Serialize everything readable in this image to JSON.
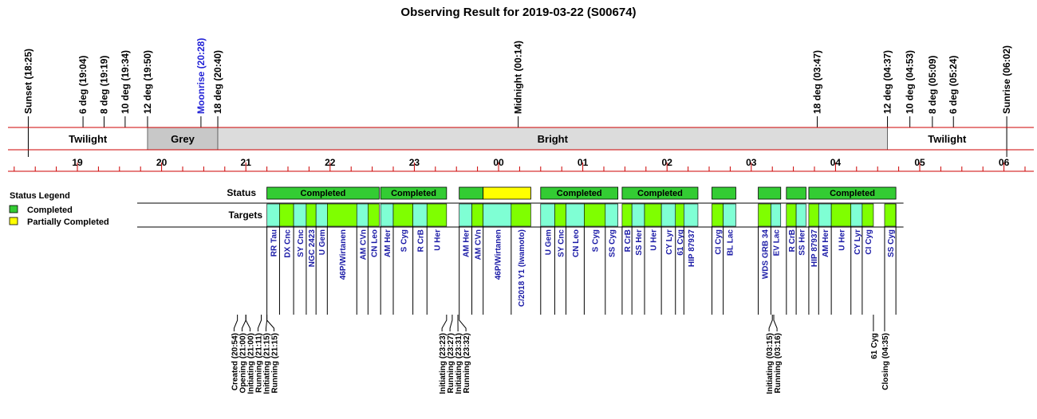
{
  "chart_data": {
    "type": "timeline",
    "title": "Observing Result for 2019-03-22 (S00674)",
    "hours": [
      "19",
      "20",
      "21",
      "22",
      "23",
      "00",
      "01",
      "02",
      "03",
      "04",
      "05",
      "06"
    ],
    "events": [
      {
        "label": "Sunset (18:25)",
        "t": 18.417,
        "color": "#000000"
      },
      {
        "label": "6 deg (19:04)",
        "t": 19.067,
        "color": "#000000"
      },
      {
        "label": "8 deg (19:19)",
        "t": 19.317,
        "color": "#000000"
      },
      {
        "label": "10 deg (19:34)",
        "t": 19.567,
        "color": "#000000"
      },
      {
        "label": "12 deg (19:50)",
        "t": 19.833,
        "color": "#000000"
      },
      {
        "label": "Moonrise (20:28)",
        "t": 20.467,
        "color": "#2323d6"
      },
      {
        "label": "18 deg (20:40)",
        "t": 20.667,
        "color": "#000000"
      },
      {
        "label": "Midnight (00:14)",
        "t": 24.233,
        "color": "#000000"
      },
      {
        "label": "18 deg (03:47)",
        "t": 27.783,
        "color": "#000000"
      },
      {
        "label": "12 deg (04:37)",
        "t": 28.617,
        "color": "#000000"
      },
      {
        "label": "10 deg (04:53)",
        "t": 28.883,
        "color": "#000000"
      },
      {
        "label": "8 deg (05:09)",
        "t": 29.15,
        "color": "#000000"
      },
      {
        "label": "6 deg (05:24)",
        "t": 29.4,
        "color": "#000000"
      },
      {
        "label": "Sunrise (06:02)",
        "t": 30.033,
        "color": "#000000"
      }
    ],
    "bands": [
      {
        "label": "Twilight",
        "start": 18.417,
        "end": 19.833,
        "color": "#ffffff"
      },
      {
        "label": "Grey",
        "start": 19.833,
        "end": 20.667,
        "color": "#c8c8c8"
      },
      {
        "label": "Bright",
        "start": 20.667,
        "end": 28.617,
        "color": "#dcdcdc"
      },
      {
        "label": "Twilight",
        "start": 28.617,
        "end": 30.033,
        "color": "#ffffff"
      }
    ],
    "row_labels": {
      "status": "Status",
      "targets": "Targets"
    },
    "status_segments": [
      {
        "label": "Completed",
        "start": 21.25,
        "end": 22.583,
        "status": "completed"
      },
      {
        "label": "Completed",
        "start": 22.6,
        "end": 23.383,
        "status": "completed"
      },
      {
        "label": "",
        "start": 23.533,
        "end": 23.817,
        "status": "completed"
      },
      {
        "label": "",
        "start": 23.817,
        "end": 24.383,
        "status": "partial"
      },
      {
        "label": "Completed",
        "start": 24.5,
        "end": 25.417,
        "status": "completed"
      },
      {
        "label": "Completed",
        "start": 25.467,
        "end": 26.367,
        "status": "completed"
      },
      {
        "label": "",
        "start": 26.533,
        "end": 26.817,
        "status": "completed"
      },
      {
        "label": "",
        "start": 27.083,
        "end": 27.35,
        "status": "completed"
      },
      {
        "label": "",
        "start": 27.417,
        "end": 27.65,
        "status": "completed"
      },
      {
        "label": "Completed",
        "start": 27.683,
        "end": 28.717,
        "status": "completed"
      }
    ],
    "targets": [
      {
        "name": "RR Tau",
        "start": 21.25,
        "end": 21.4,
        "color": "#7fffd4"
      },
      {
        "name": "DX Cnc",
        "start": 21.4,
        "end": 21.567,
        "color": "#7fff00"
      },
      {
        "name": "SY Cnc",
        "start": 21.567,
        "end": 21.717,
        "color": "#7fffd4"
      },
      {
        "name": "NGC 2423",
        "start": 21.717,
        "end": 21.833,
        "color": "#7fff00"
      },
      {
        "name": "U Gem",
        "start": 21.833,
        "end": 21.967,
        "color": "#7fffd4"
      },
      {
        "name": "46P/Wirtanen",
        "start": 21.967,
        "end": 22.317,
        "color": "#7fff00"
      },
      {
        "name": "AM CVn",
        "start": 22.317,
        "end": 22.45,
        "color": "#7fffd4"
      },
      {
        "name": "CN Leo",
        "start": 22.45,
        "end": 22.583,
        "color": "#7fff00"
      },
      {
        "name": "AM Her",
        "start": 22.6,
        "end": 22.75,
        "color": "#7fffd4"
      },
      {
        "name": "S Cyg",
        "start": 22.75,
        "end": 22.983,
        "color": "#7fff00"
      },
      {
        "name": "R CrB",
        "start": 22.983,
        "end": 23.15,
        "color": "#7fffd4"
      },
      {
        "name": "U Her",
        "start": 23.15,
        "end": 23.383,
        "color": "#7fff00"
      },
      {
        "name": "AM Her",
        "start": 23.533,
        "end": 23.683,
        "color": "#7fffd4"
      },
      {
        "name": "AM CVn",
        "start": 23.683,
        "end": 23.817,
        "color": "#7fff00"
      },
      {
        "name": "46P/Wirtanen",
        "start": 23.817,
        "end": 24.15,
        "color": "#7fffd4"
      },
      {
        "name": "C/2018 Y1 (Iwamoto)",
        "start": 24.15,
        "end": 24.383,
        "color": "#7fff00"
      },
      {
        "name": "U Gem",
        "start": 24.5,
        "end": 24.667,
        "color": "#7fffd4"
      },
      {
        "name": "SY Cnc",
        "start": 24.667,
        "end": 24.8,
        "color": "#7fff00"
      },
      {
        "name": "CN Leo",
        "start": 24.8,
        "end": 25.017,
        "color": "#7fffd4"
      },
      {
        "name": "S Cyg",
        "start": 25.017,
        "end": 25.267,
        "color": "#7fff00"
      },
      {
        "name": "SS Cyg",
        "start": 25.267,
        "end": 25.417,
        "color": "#7fffd4"
      },
      {
        "name": "R CrB",
        "start": 25.467,
        "end": 25.583,
        "color": "#7fff00"
      },
      {
        "name": "SS Her",
        "start": 25.583,
        "end": 25.733,
        "color": "#7fffd4"
      },
      {
        "name": "U Her",
        "start": 25.733,
        "end": 25.933,
        "color": "#7fff00"
      },
      {
        "name": "CY Lyr",
        "start": 25.933,
        "end": 26.1,
        "color": "#7fffd4"
      },
      {
        "name": "61 Cyg",
        "start": 26.1,
        "end": 26.2,
        "color": "#7fff00"
      },
      {
        "name": "HIP 87937",
        "start": 26.2,
        "end": 26.367,
        "color": "#7fffd4"
      },
      {
        "name": "CI Cyg",
        "start": 26.533,
        "end": 26.667,
        "color": "#7fff00"
      },
      {
        "name": "BL Lac",
        "start": 26.667,
        "end": 26.817,
        "color": "#7fffd4"
      },
      {
        "name": "WDS GRB 34",
        "start": 27.083,
        "end": 27.233,
        "color": "#7fff00"
      },
      {
        "name": "EV Lac",
        "start": 27.233,
        "end": 27.35,
        "color": "#7fffd4"
      },
      {
        "name": "R CrB",
        "start": 27.417,
        "end": 27.533,
        "color": "#7fff00"
      },
      {
        "name": "SS Her",
        "start": 27.533,
        "end": 27.65,
        "color": "#7fffd4"
      },
      {
        "name": "HIP 87937",
        "start": 27.683,
        "end": 27.8,
        "color": "#7fff00"
      },
      {
        "name": "AM Her",
        "start": 27.8,
        "end": 27.95,
        "color": "#7fffd4"
      },
      {
        "name": "U Her",
        "start": 27.95,
        "end": 28.183,
        "color": "#7fff00"
      },
      {
        "name": "CY Lyr",
        "start": 28.183,
        "end": 28.317,
        "color": "#7fffd4"
      },
      {
        "name": "CI Cyg",
        "start": 28.317,
        "end": 28.45,
        "color": "#7fff00"
      },
      {
        "name": "SS Cyg",
        "start": 28.583,
        "end": 28.717,
        "color": "#7fff00"
      }
    ],
    "log_groups": [
      {
        "entries": [
          {
            "label": "Created (20:54)",
            "t": 20.9,
            "color": "#000000"
          },
          {
            "label": "Opening (21:00)",
            "t": 21.0,
            "color": "#000000"
          },
          {
            "label": "Initiating (21:00)",
            "t": 21.0,
            "color": "#000000"
          },
          {
            "label": "Running (21:11)",
            "t": 21.183,
            "color": "#000000"
          },
          {
            "label": "Initiating (21:15)",
            "t": 21.25,
            "color": "#000000"
          },
          {
            "label": "Running (21:15)",
            "t": 21.25,
            "color": "#000000"
          }
        ]
      },
      {
        "entries": [
          {
            "label": "Initiating (23:23)",
            "t": 23.383,
            "color": "#000000"
          },
          {
            "label": "Running (23:27)",
            "t": 23.45,
            "color": "#000000"
          },
          {
            "label": "Initiating (23:31)",
            "t": 23.517,
            "color": "#000000"
          },
          {
            "label": "Running (23:32)",
            "t": 23.533,
            "color": "#000000"
          }
        ]
      },
      {
        "entries": [
          {
            "label": "Initiating (03:15)",
            "t": 27.25,
            "color": "#000000"
          },
          {
            "label": "Running (03:16)",
            "t": 27.267,
            "color": "#000000"
          }
        ]
      },
      {
        "entries": [
          {
            "label": "61 Cyg",
            "t": 28.45,
            "color": "#1a1aa6"
          }
        ]
      },
      {
        "entries": [
          {
            "label": "Closing (04:35)",
            "t": 28.583,
            "color": "#000000"
          }
        ]
      }
    ],
    "legend": {
      "title": "Status Legend",
      "placement": "left",
      "items": [
        {
          "label": "Completed",
          "color": "#33cc33"
        },
        {
          "label": "Partially Completed",
          "color": "#ffff00"
        }
      ]
    },
    "colors": {
      "completed": "#33cc33",
      "partial": "#ffff00",
      "axis_line": "#cc0000"
    }
  }
}
